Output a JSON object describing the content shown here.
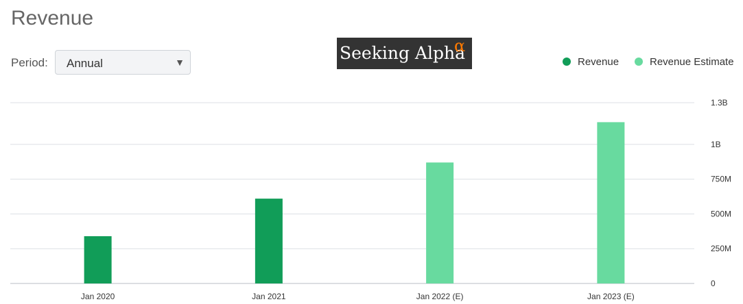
{
  "header": {
    "title": "Revenue"
  },
  "period": {
    "label": "Period:",
    "selected": "Annual"
  },
  "logo": {
    "text": "Seeking Alpha",
    "symbol": "α"
  },
  "colors": {
    "revenue": "#119d58",
    "estimate": "#68da9f"
  },
  "chart_data": {
    "type": "bar",
    "categories": [
      "Jan 2020",
      "Jan 2021",
      "Jan 2022 (E)",
      "Jan 2023 (E)"
    ],
    "series": [
      {
        "name": "Revenue",
        "values": [
          340000000,
          610000000,
          null,
          null
        ]
      },
      {
        "name": "Revenue Estimate",
        "values": [
          null,
          null,
          870000000,
          1160000000
        ]
      }
    ],
    "ylim": [
      0,
      1300000000
    ],
    "yticks": [
      {
        "value": 0,
        "label": "0"
      },
      {
        "value": 250000000,
        "label": "250M"
      },
      {
        "value": 500000000,
        "label": "500M"
      },
      {
        "value": 750000000,
        "label": "750M"
      },
      {
        "value": 1000000000,
        "label": "1B"
      },
      {
        "value": 1300000000,
        "label": "1.3B"
      }
    ],
    "grid": true,
    "legend_position": "top-right"
  }
}
